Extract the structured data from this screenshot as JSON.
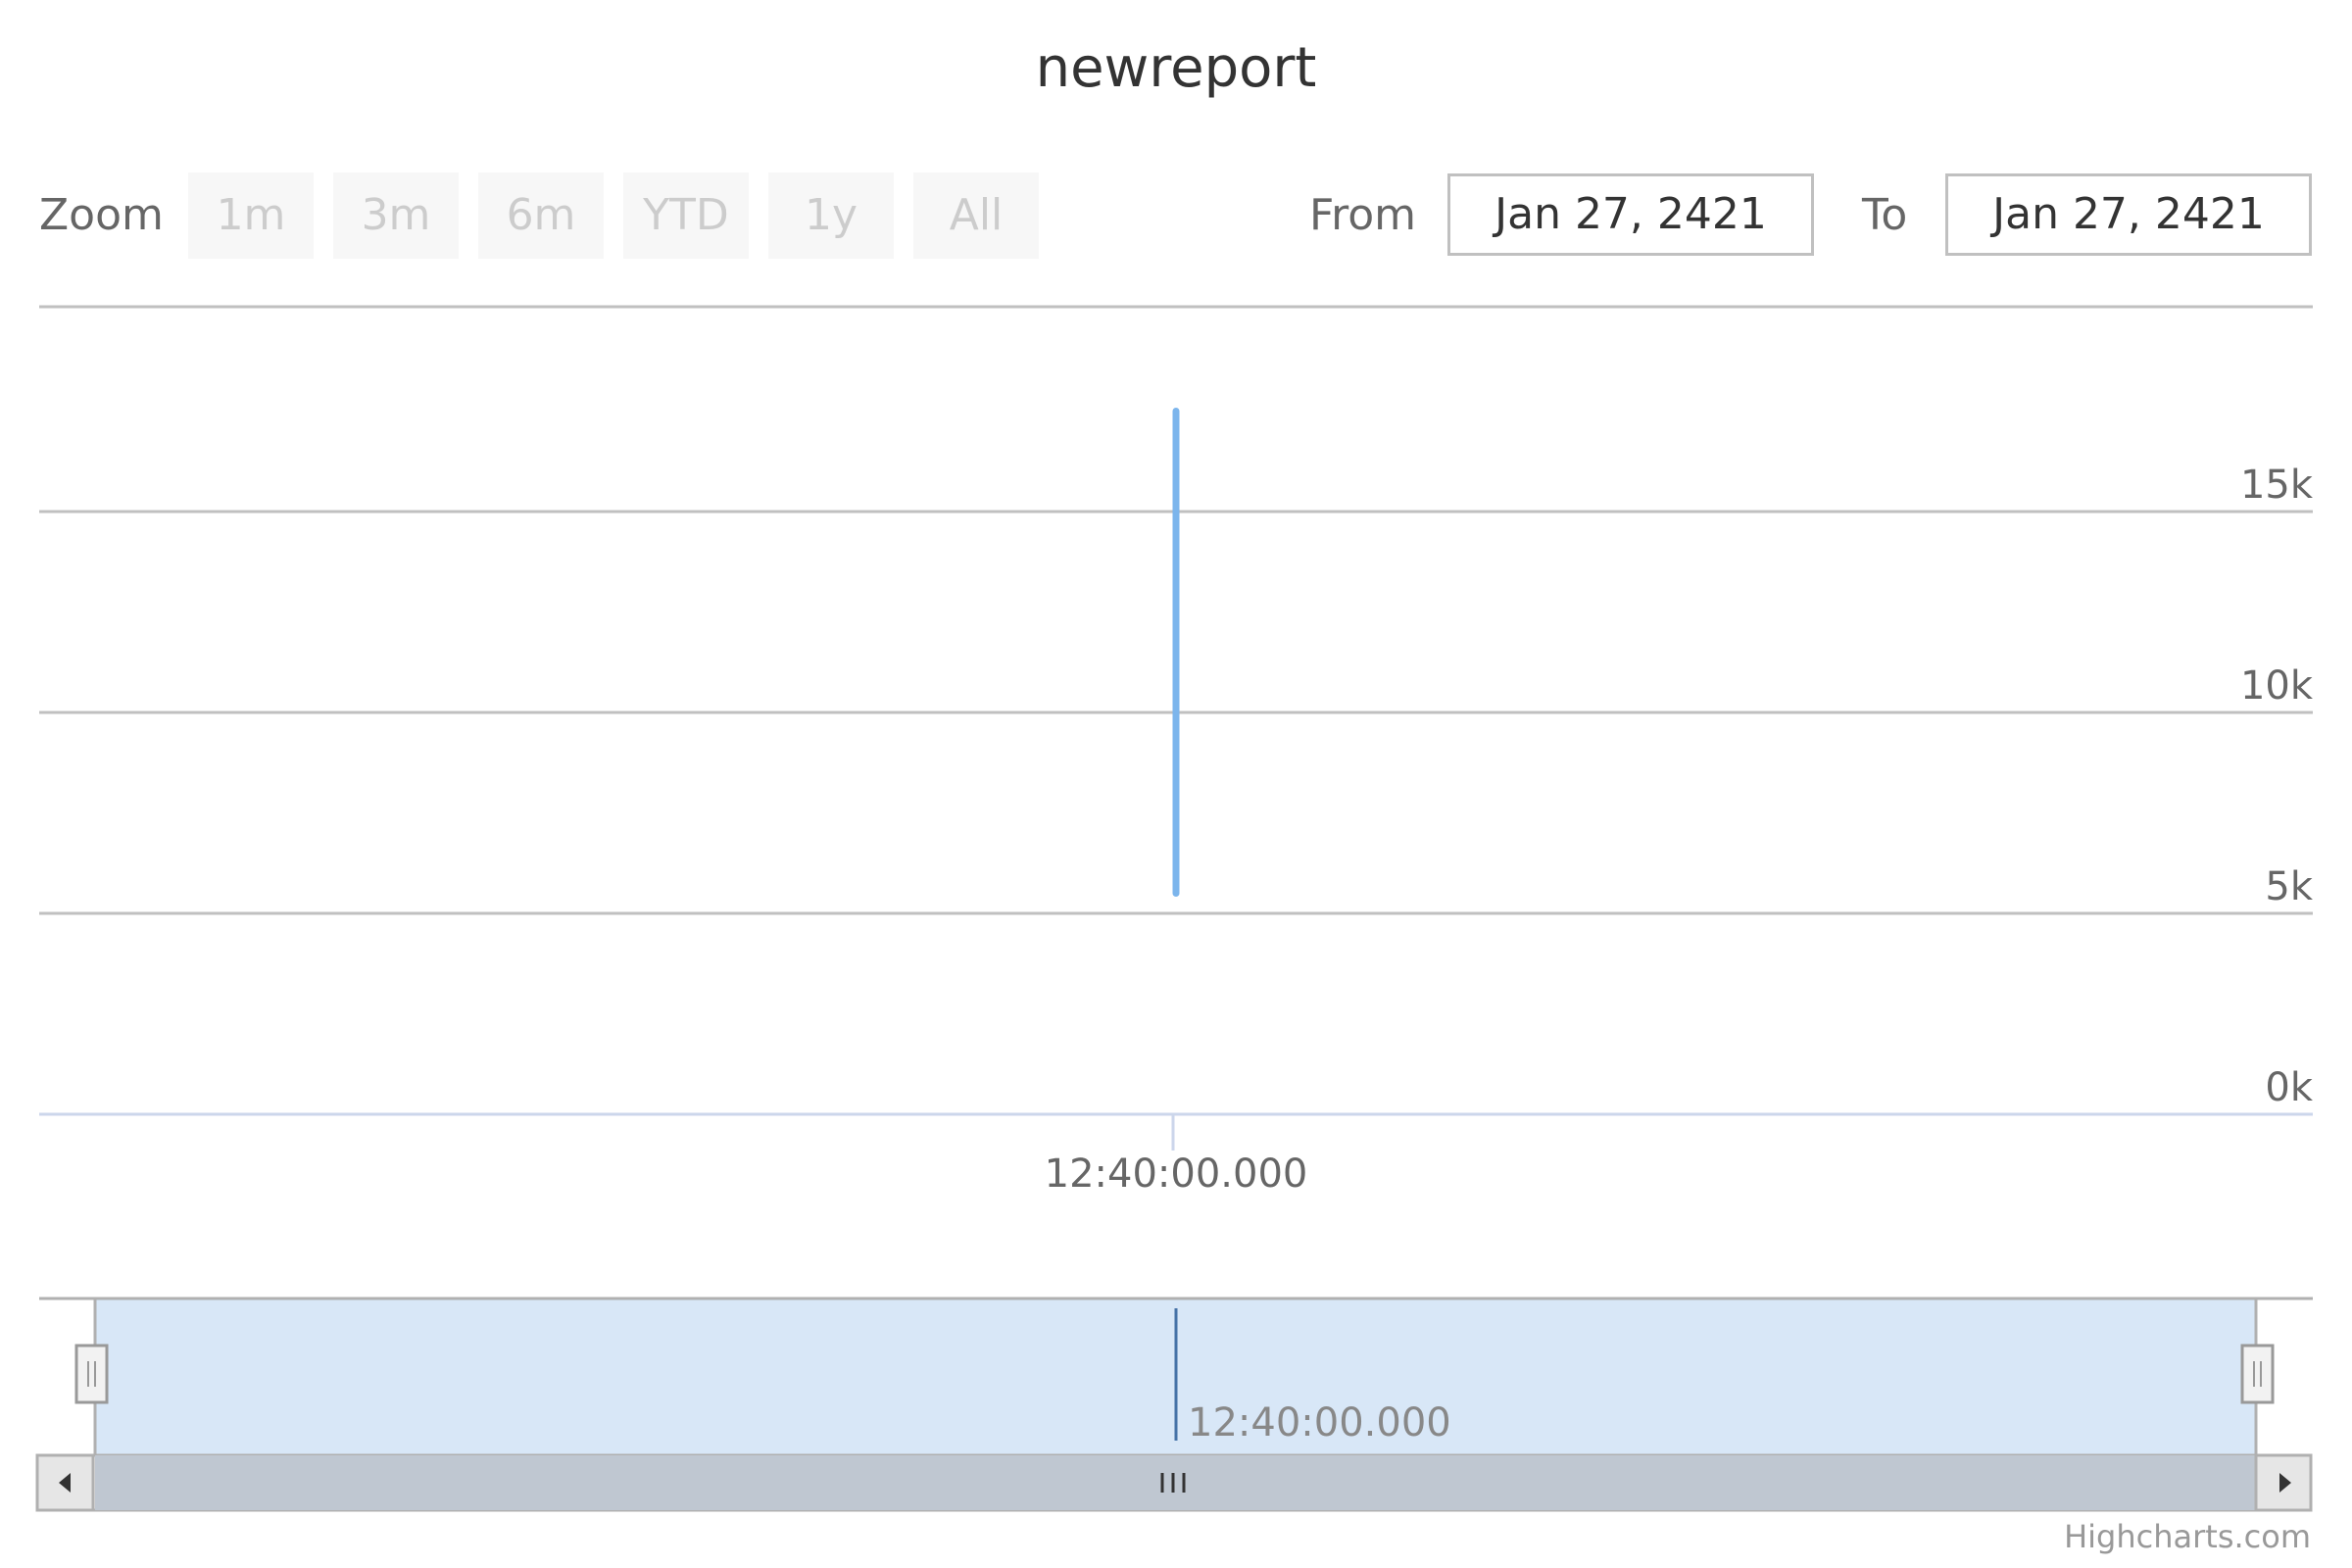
{
  "title": "newreport",
  "range_selector": {
    "zoom_label": "Zoom",
    "buttons": [
      "1m",
      "3m",
      "6m",
      "YTD",
      "1y",
      "All"
    ],
    "from_label": "From",
    "from_value": "Jan 27, 2421",
    "to_label": "To",
    "to_value": "Jan 27, 2421"
  },
  "credits": "Highcharts.com",
  "chart_data": {
    "type": "line",
    "title": "newreport",
    "x": [
      "12:40:00.000",
      "12:40:00.000"
    ],
    "series": [
      {
        "values": [
          17500,
          5500
        ],
        "color": "#7cb5ec"
      }
    ],
    "y_ticks": [
      "0k",
      "5k",
      "10k",
      "15k"
    ],
    "ylim": [
      0,
      15000
    ],
    "x_tick_labels": [
      "12:40:00.000"
    ],
    "navigator_tick_labels": [
      "12:40:00.000"
    ],
    "grid": true,
    "y_axis_side": "right"
  }
}
